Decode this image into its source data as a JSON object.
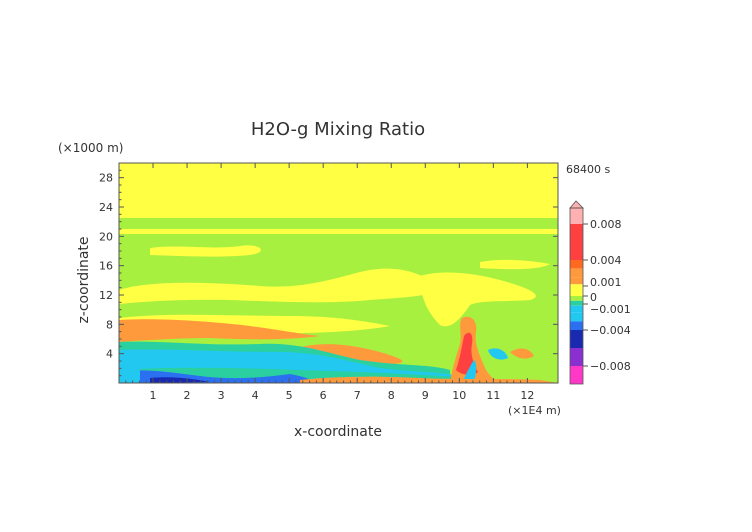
{
  "chart_data": {
    "type": "heatmap",
    "title": "H2O-g Mixing Ratio",
    "xlabel": "x-coordinate",
    "ylabel": "z-coordinate",
    "x_unit": "(×1E4 m)",
    "y_unit": "(×1000 m)",
    "time_label": "68400 s",
    "xlim": [
      0,
      12.9
    ],
    "ylim": [
      0,
      30
    ],
    "x_ticks": [
      "1",
      "2",
      "3",
      "4",
      "5",
      "6",
      "7",
      "8",
      "9",
      "10",
      "11",
      "12"
    ],
    "y_ticks": [
      "4",
      "8",
      "12",
      "16",
      "20",
      "24",
      "28"
    ],
    "colorbar": {
      "labels": [
        "0.008",
        "0.004",
        "0.001",
        "0",
        "−0.001",
        "−0.004",
        "−0.008"
      ],
      "ticks": [
        0.008,
        0.004,
        0.001,
        0,
        -0.001,
        -0.004,
        -0.008
      ],
      "range": [
        -0.01,
        0.01
      ],
      "colors": {
        "overflow": "#ffb0b0",
        "red": "#ff4040",
        "orange_red": "#ff6a20",
        "orange": "#ff9a3c",
        "yellow": "#ffff44",
        "green": "#a8f040",
        "aqua": "#2ad0a0",
        "cyan": "#22c8f0",
        "blue": "#2a70f0",
        "navy": "#1a2ab0",
        "purple": "#8a30d0",
        "magenta": "#ff38c8"
      }
    }
  }
}
